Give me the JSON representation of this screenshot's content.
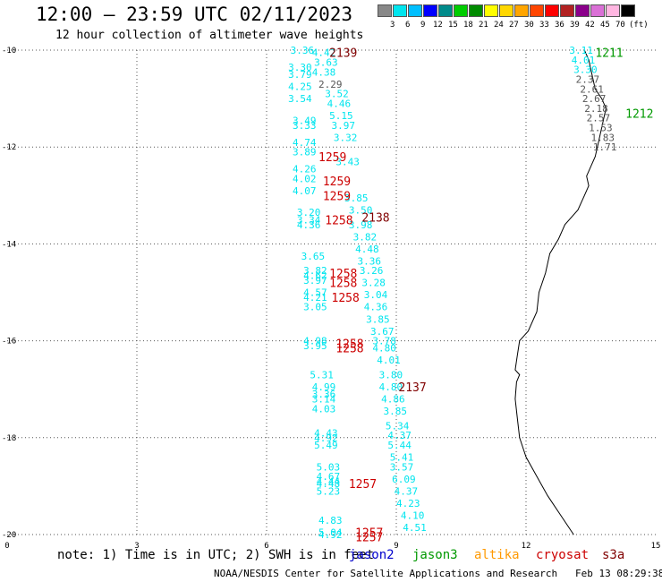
{
  "title": "12:00 – 23:59 UTC 02/11/2023",
  "subtitle": "12 hour collection of altimeter wave heights",
  "note": "note: 1) Time is in UTC; 2) SWH is in feet",
  "footer": "NOAA/NESDIS Center for Satellite Applications and Research   Feb 13 08:29:38 UTC 2023",
  "satellites": [
    {
      "name": "jason2",
      "color": "#0000cc"
    },
    {
      "name": "jason3",
      "color": "#009900"
    },
    {
      "name": "altika",
      "color": "#ff9900"
    },
    {
      "name": "cryosat",
      "color": "#cc0000"
    },
    {
      "name": "s3a",
      "color": "#800000"
    }
  ],
  "color_scale": {
    "unit_label": "(ft)",
    "labels": [
      "3",
      "6",
      "9",
      "12",
      "15",
      "18",
      "21",
      "24",
      "27",
      "30",
      "33",
      "36",
      "39",
      "42",
      "45",
      "70"
    ],
    "colors": [
      "#888888",
      "#00e5ee",
      "#00bfff",
      "#0000ff",
      "#008b8b",
      "#00cd00",
      "#008b00",
      "#ffff00",
      "#ffd700",
      "#ffa500",
      "#ff4500",
      "#ff0000",
      "#b22222",
      "#8b008b",
      "#da70d6",
      "#ffb6e1",
      "#000000"
    ]
  },
  "map": {
    "x_range": [
      0,
      15
    ],
    "y_range": [
      -20,
      -10
    ],
    "x_ticks": [
      "0",
      "3",
      "6",
      "9",
      "12",
      "15"
    ],
    "x_tick_values": [
      0,
      3,
      6,
      9,
      12,
      15
    ],
    "y_ticks": [
      "-10",
      "-12",
      "-14",
      "-16",
      "-18",
      "-20"
    ],
    "y_tick_values": [
      -10,
      -12,
      -14,
      -16,
      -18,
      -20
    ],
    "observations": [
      {
        "lon": 6.55,
        "lat": -10.0,
        "v": "3.36",
        "c": "#00e5ee"
      },
      {
        "lon": 7.05,
        "lat": -10.05,
        "v": "4.42",
        "c": "#00e5ee"
      },
      {
        "lon": 7.1,
        "lat": -10.25,
        "v": "3.63",
        "c": "#00e5ee"
      },
      {
        "lon": 6.5,
        "lat": -10.35,
        "v": "3.30",
        "c": "#00e5ee"
      },
      {
        "lon": 7.05,
        "lat": -10.45,
        "v": "4.38",
        "c": "#00e5ee"
      },
      {
        "lon": 6.5,
        "lat": -10.5,
        "v": "3.79",
        "c": "#00e5ee"
      },
      {
        "lon": 7.2,
        "lat": -10.7,
        "v": "2.29",
        "c": "#555555"
      },
      {
        "lon": 6.5,
        "lat": -10.75,
        "v": "4.25",
        "c": "#00e5ee"
      },
      {
        "lon": 7.35,
        "lat": -10.9,
        "v": "3.52",
        "c": "#00e5ee"
      },
      {
        "lon": 6.5,
        "lat": -11.0,
        "v": "3.54",
        "c": "#00e5ee"
      },
      {
        "lon": 7.4,
        "lat": -11.1,
        "v": "4.46",
        "c": "#00e5ee"
      },
      {
        "lon": 7.45,
        "lat": -11.35,
        "v": "5.15",
        "c": "#00e5ee"
      },
      {
        "lon": 6.6,
        "lat": -11.45,
        "v": "3.49",
        "c": "#00e5ee"
      },
      {
        "lon": 6.6,
        "lat": -11.55,
        "v": "3.33",
        "c": "#00e5ee"
      },
      {
        "lon": 7.5,
        "lat": -11.55,
        "v": "3.97",
        "c": "#00e5ee"
      },
      {
        "lon": 7.55,
        "lat": -11.8,
        "v": "3.32",
        "c": "#00e5ee"
      },
      {
        "lon": 6.6,
        "lat": -11.9,
        "v": "4.74",
        "c": "#00e5ee"
      },
      {
        "lon": 6.6,
        "lat": -12.1,
        "v": "3.89",
        "c": "#00e5ee"
      },
      {
        "lon": 7.6,
        "lat": -12.3,
        "v": "3.43",
        "c": "#00e5ee"
      },
      {
        "lon": 6.6,
        "lat": -12.45,
        "v": "4.26",
        "c": "#00e5ee"
      },
      {
        "lon": 6.6,
        "lat": -12.65,
        "v": "4.02",
        "c": "#00e5ee"
      },
      {
        "lon": 6.6,
        "lat": -12.9,
        "v": "4.07",
        "c": "#00e5ee"
      },
      {
        "lon": 7.8,
        "lat": -13.05,
        "v": "3.85",
        "c": "#00e5ee"
      },
      {
        "lon": 7.9,
        "lat": -13.3,
        "v": "3.50",
        "c": "#00e5ee"
      },
      {
        "lon": 6.7,
        "lat": -13.35,
        "v": "3.20",
        "c": "#00e5ee"
      },
      {
        "lon": 6.7,
        "lat": -13.5,
        "v": "3.34",
        "c": "#00e5ee"
      },
      {
        "lon": 6.7,
        "lat": -13.6,
        "v": "4.36",
        "c": "#00e5ee"
      },
      {
        "lon": 7.9,
        "lat": -13.6,
        "v": "3.98",
        "c": "#00e5ee"
      },
      {
        "lon": 8.0,
        "lat": -13.85,
        "v": "3.82",
        "c": "#00e5ee"
      },
      {
        "lon": 8.05,
        "lat": -14.1,
        "v": "4.48",
        "c": "#00e5ee"
      },
      {
        "lon": 6.8,
        "lat": -14.25,
        "v": "3.65",
        "c": "#00e5ee"
      },
      {
        "lon": 8.1,
        "lat": -14.35,
        "v": "3.36",
        "c": "#00e5ee"
      },
      {
        "lon": 6.85,
        "lat": -14.55,
        "v": "3.82",
        "c": "#00e5ee"
      },
      {
        "lon": 8.15,
        "lat": -14.55,
        "v": "3.26",
        "c": "#00e5ee"
      },
      {
        "lon": 6.85,
        "lat": -14.65,
        "v": "4.62",
        "c": "#00e5ee"
      },
      {
        "lon": 6.85,
        "lat": -14.75,
        "v": "3.97",
        "c": "#00e5ee"
      },
      {
        "lon": 8.2,
        "lat": -14.8,
        "v": "3.28",
        "c": "#00e5ee"
      },
      {
        "lon": 6.85,
        "lat": -15.0,
        "v": "4.57",
        "c": "#00e5ee"
      },
      {
        "lon": 8.25,
        "lat": -15.05,
        "v": "3.04",
        "c": "#00e5ee"
      },
      {
        "lon": 6.85,
        "lat": -15.1,
        "v": "4.21",
        "c": "#00e5ee"
      },
      {
        "lon": 6.85,
        "lat": -15.3,
        "v": "3.05",
        "c": "#00e5ee"
      },
      {
        "lon": 8.25,
        "lat": -15.3,
        "v": "4.36",
        "c": "#00e5ee"
      },
      {
        "lon": 8.3,
        "lat": -15.55,
        "v": "3.85",
        "c": "#00e5ee"
      },
      {
        "lon": 8.4,
        "lat": -15.8,
        "v": "3.67",
        "c": "#00e5ee"
      },
      {
        "lon": 6.85,
        "lat": -16.0,
        "v": "4.98",
        "c": "#00e5ee"
      },
      {
        "lon": 8.45,
        "lat": -16.0,
        "v": "3.78",
        "c": "#00e5ee"
      },
      {
        "lon": 6.85,
        "lat": -16.1,
        "v": "3.95",
        "c": "#00e5ee"
      },
      {
        "lon": 8.45,
        "lat": -16.15,
        "v": "4.80",
        "c": "#00e5ee"
      },
      {
        "lon": 8.55,
        "lat": -16.4,
        "v": "4.01",
        "c": "#00e5ee"
      },
      {
        "lon": 7.0,
        "lat": -16.7,
        "v": "5.31",
        "c": "#00e5ee"
      },
      {
        "lon": 8.6,
        "lat": -16.7,
        "v": "3.80",
        "c": "#00e5ee"
      },
      {
        "lon": 7.05,
        "lat": -16.95,
        "v": "4.99",
        "c": "#00e5ee"
      },
      {
        "lon": 8.6,
        "lat": -16.95,
        "v": "4.80",
        "c": "#00e5ee"
      },
      {
        "lon": 7.05,
        "lat": -17.1,
        "v": "3.36",
        "c": "#00e5ee"
      },
      {
        "lon": 7.05,
        "lat": -17.2,
        "v": "3.14",
        "c": "#00e5ee"
      },
      {
        "lon": 8.65,
        "lat": -17.2,
        "v": "4.86",
        "c": "#00e5ee"
      },
      {
        "lon": 7.05,
        "lat": -17.4,
        "v": "4.03",
        "c": "#00e5ee"
      },
      {
        "lon": 8.7,
        "lat": -17.45,
        "v": "3.85",
        "c": "#00e5ee"
      },
      {
        "lon": 8.75,
        "lat": -17.75,
        "v": "5.34",
        "c": "#00e5ee"
      },
      {
        "lon": 7.1,
        "lat": -17.9,
        "v": "4.43",
        "c": "#00e5ee"
      },
      {
        "lon": 8.8,
        "lat": -17.95,
        "v": "4.37",
        "c": "#00e5ee"
      },
      {
        "lon": 7.1,
        "lat": -18.0,
        "v": "4.92",
        "c": "#00e5ee"
      },
      {
        "lon": 7.1,
        "lat": -18.15,
        "v": "5.49",
        "c": "#00e5ee"
      },
      {
        "lon": 8.8,
        "lat": -18.15,
        "v": "5.44",
        "c": "#00e5ee"
      },
      {
        "lon": 8.85,
        "lat": -18.4,
        "v": "5.41",
        "c": "#00e5ee"
      },
      {
        "lon": 7.15,
        "lat": -18.6,
        "v": "5.03",
        "c": "#00e5ee"
      },
      {
        "lon": 8.85,
        "lat": -18.6,
        "v": "3.57",
        "c": "#00e5ee"
      },
      {
        "lon": 7.15,
        "lat": -18.8,
        "v": "4.67",
        "c": "#00e5ee"
      },
      {
        "lon": 8.9,
        "lat": -18.85,
        "v": "6.09",
        "c": "#00e5ee"
      },
      {
        "lon": 7.15,
        "lat": -18.9,
        "v": "4.44",
        "c": "#00e5ee"
      },
      {
        "lon": 7.15,
        "lat": -18.95,
        "v": "4.48",
        "c": "#00e5ee"
      },
      {
        "lon": 7.15,
        "lat": -19.1,
        "v": "5.23",
        "c": "#00e5ee"
      },
      {
        "lon": 8.95,
        "lat": -19.1,
        "v": "4.37",
        "c": "#00e5ee"
      },
      {
        "lon": 9.0,
        "lat": -19.35,
        "v": "4.23",
        "c": "#00e5ee"
      },
      {
        "lon": 9.1,
        "lat": -19.6,
        "v": "4.10",
        "c": "#00e5ee"
      },
      {
        "lon": 7.2,
        "lat": -19.7,
        "v": "4.83",
        "c": "#00e5ee"
      },
      {
        "lon": 9.15,
        "lat": -19.85,
        "v": "4.51",
        "c": "#00e5ee"
      },
      {
        "lon": 7.2,
        "lat": -19.95,
        "v": "5.04",
        "c": "#00e5ee"
      },
      {
        "lon": 7.2,
        "lat": -20.0,
        "v": "4.92",
        "c": "#00e5ee"
      },
      {
        "lon": 13.0,
        "lat": -10.0,
        "v": "3.11",
        "c": "#00e5ee"
      },
      {
        "lon": 13.05,
        "lat": -10.2,
        "v": "4.01",
        "c": "#00e5ee"
      },
      {
        "lon": 13.1,
        "lat": -10.4,
        "v": "3.30",
        "c": "#00e5ee"
      },
      {
        "lon": 13.15,
        "lat": -10.6,
        "v": "2.37",
        "c": "#555555"
      },
      {
        "lon": 13.25,
        "lat": -10.8,
        "v": "2.61",
        "c": "#555555"
      },
      {
        "lon": 13.3,
        "lat": -11.0,
        "v": "2.67",
        "c": "#555555"
      },
      {
        "lon": 13.35,
        "lat": -11.2,
        "v": "2.18",
        "c": "#555555"
      },
      {
        "lon": 13.4,
        "lat": -11.4,
        "v": "2.57",
        "c": "#555555"
      },
      {
        "lon": 13.45,
        "lat": -11.6,
        "v": "1.53",
        "c": "#555555"
      },
      {
        "lon": 13.5,
        "lat": -11.8,
        "v": "1.83",
        "c": "#555555"
      },
      {
        "lon": 13.55,
        "lat": -12.0,
        "v": "1.71",
        "c": "#555555"
      }
    ],
    "passes": [
      {
        "lon": 7.45,
        "lat": -10.05,
        "label": "2139",
        "c": "#800000"
      },
      {
        "lon": 13.6,
        "lat": -10.05,
        "label": "1211",
        "c": "#009900"
      },
      {
        "lon": 14.3,
        "lat": -11.3,
        "label": "1212",
        "c": "#009900"
      },
      {
        "lon": 7.2,
        "lat": -12.2,
        "label": "1259",
        "c": "#cc0000"
      },
      {
        "lon": 7.3,
        "lat": -12.7,
        "label": "1259",
        "c": "#cc0000"
      },
      {
        "lon": 7.3,
        "lat": -13.0,
        "label": "1259",
        "c": "#cc0000"
      },
      {
        "lon": 7.35,
        "lat": -13.5,
        "label": "1258",
        "c": "#cc0000"
      },
      {
        "lon": 8.2,
        "lat": -13.45,
        "label": "2138",
        "c": "#800000"
      },
      {
        "lon": 7.45,
        "lat": -14.6,
        "label": "1258",
        "c": "#cc0000"
      },
      {
        "lon": 7.45,
        "lat": -14.8,
        "label": "1258",
        "c": "#cc0000"
      },
      {
        "lon": 7.5,
        "lat": -15.1,
        "label": "1258",
        "c": "#cc0000"
      },
      {
        "lon": 7.6,
        "lat": -16.05,
        "label": "1258",
        "c": "#cc0000"
      },
      {
        "lon": 7.6,
        "lat": -16.15,
        "label": "1258",
        "c": "#cc0000"
      },
      {
        "lon": 9.05,
        "lat": -16.95,
        "label": "2137",
        "c": "#800000"
      },
      {
        "lon": 7.9,
        "lat": -18.95,
        "label": "1257",
        "c": "#cc0000"
      },
      {
        "lon": 8.05,
        "lat": -19.95,
        "label": "1257",
        "c": "#cc0000"
      },
      {
        "lon": 8.05,
        "lat": -20.05,
        "label": "1257",
        "c": "#cc0000"
      }
    ],
    "coastline": [
      [
        13.35,
        -10.0
      ],
      [
        13.45,
        -10.2
      ],
      [
        13.5,
        -10.4
      ],
      [
        13.55,
        -10.6
      ],
      [
        13.6,
        -10.8
      ],
      [
        13.75,
        -11.0
      ],
      [
        13.85,
        -11.2
      ],
      [
        13.8,
        -11.4
      ],
      [
        13.75,
        -11.6
      ],
      [
        13.7,
        -11.8
      ],
      [
        13.65,
        -12.0
      ],
      [
        13.6,
        -12.2
      ],
      [
        13.5,
        -12.4
      ],
      [
        13.4,
        -12.6
      ],
      [
        13.45,
        -12.8
      ],
      [
        13.35,
        -13.0
      ],
      [
        13.2,
        -13.3
      ],
      [
        12.9,
        -13.6
      ],
      [
        12.75,
        -13.9
      ],
      [
        12.55,
        -14.2
      ],
      [
        12.45,
        -14.6
      ],
      [
        12.3,
        -15.0
      ],
      [
        12.25,
        -15.4
      ],
      [
        12.05,
        -15.8
      ],
      [
        11.85,
        -16.0
      ],
      [
        11.8,
        -16.3
      ],
      [
        11.75,
        -16.6
      ],
      [
        11.85,
        -16.7
      ],
      [
        11.78,
        -16.85
      ],
      [
        11.75,
        -17.2
      ],
      [
        11.8,
        -17.6
      ],
      [
        11.85,
        -18.0
      ],
      [
        12.0,
        -18.4
      ],
      [
        12.25,
        -18.8
      ],
      [
        12.5,
        -19.2
      ],
      [
        12.8,
        -19.6
      ],
      [
        13.1,
        -20.0
      ]
    ]
  }
}
